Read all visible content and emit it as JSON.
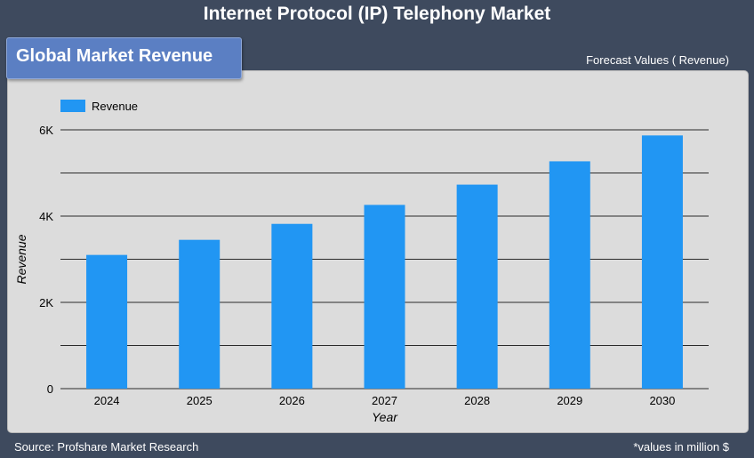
{
  "header": {
    "title": "Internet Protocol (IP) Telephony Market"
  },
  "section": {
    "label": "Global Market Revenue"
  },
  "forecast_label": "Forecast Values ( Revenue)",
  "footer": {
    "source": "Source: Profshare Market Research",
    "note": "*values in million $"
  },
  "colors": {
    "bar": "#2196f3",
    "background": "#3e4a5e",
    "panel": "#dcdcdc",
    "tab": "#5b7fc3"
  },
  "chart_data": {
    "type": "bar",
    "title": "",
    "xlabel": "Year",
    "ylabel": "Revenue",
    "categories": [
      "2024",
      "2025",
      "2026",
      "2027",
      "2028",
      "2029",
      "2030"
    ],
    "series": [
      {
        "name": "Revenue",
        "values": [
          3100,
          3450,
          3820,
          4260,
          4730,
          5270,
          5870
        ]
      }
    ],
    "ylim": [
      0,
      6000
    ],
    "yticks": [
      0,
      2000,
      4000,
      6000
    ],
    "ytick_labels": [
      "0",
      "2K",
      "4K",
      "6K"
    ],
    "grid": true,
    "legend": "top-left"
  }
}
